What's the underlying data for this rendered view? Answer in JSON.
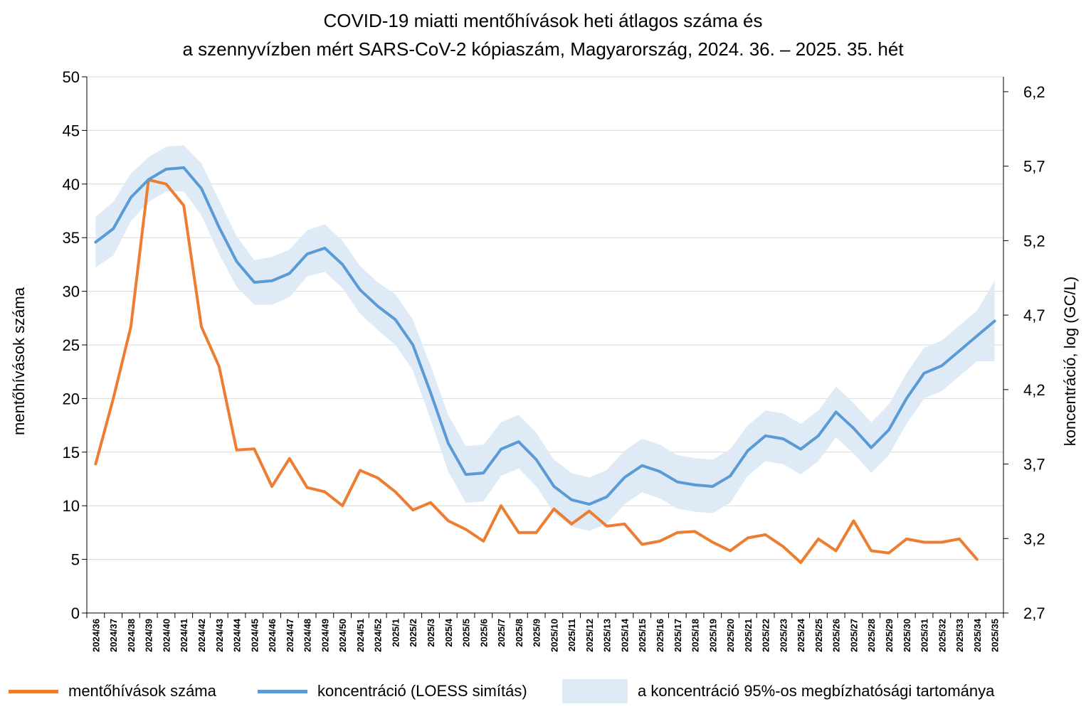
{
  "title_line1": "COVID-19 miatti mentőhívások heti átlagos száma és",
  "title_line2": "a szennyvízben mért SARS-CoV-2 kópiaszám, Magyarország, 2024. 36. – 2025. 35. hét",
  "chart_data": {
    "type": "line",
    "title": "COVID-19 miatti mentőhívások heti átlagos száma és a szennyvízben mért SARS-CoV-2 kópiaszám, Magyarország, 2024. 36. – 2025. 35. hét",
    "ylabel_left": "mentőhívások száma",
    "ylabel_right": "koncentráció, log (GC/L)",
    "ylim_left": [
      0,
      50
    ],
    "ylim_right": [
      2.7,
      6.3
    ],
    "yticks_left": [
      "0",
      "5",
      "10",
      "15",
      "20",
      "25",
      "30",
      "35",
      "40",
      "45",
      "50"
    ],
    "yticks_right": [
      "2,7",
      "3,2",
      "3,7",
      "4,2",
      "4,7",
      "5,2",
      "5,7",
      "6,2"
    ],
    "grid": true,
    "categories": [
      "2024/36",
      "2024/37",
      "2024/38",
      "2024/39",
      "2024/40",
      "2024/41",
      "2024/42",
      "2024/43",
      "2024/44",
      "2024/45",
      "2024/46",
      "2024/47",
      "2024/48",
      "2024/49",
      "2024/50",
      "2024/51",
      "2024/52",
      "2025/1",
      "2025/2",
      "2025/3",
      "2025/4",
      "2025/5",
      "2025/6",
      "2025/7",
      "2025/8",
      "2025/9",
      "2025/10",
      "2025/11",
      "2025/12",
      "2025/13",
      "2025/14",
      "2025/15",
      "2025/16",
      "2025/17",
      "2025/18",
      "2025/19",
      "2025/20",
      "2025/21",
      "2025/22",
      "2025/23",
      "2025/24",
      "2025/25",
      "2025/26",
      "2025/27",
      "2025/28",
      "2025/29",
      "2025/30",
      "2025/31",
      "2025/32",
      "2025/33",
      "2025/34",
      "2025/35"
    ],
    "series": [
      {
        "name": "mentőhívások száma",
        "axis": "left",
        "color": "#ED7D31",
        "values": [
          13.9,
          20.0,
          26.7,
          40.4,
          40.0,
          38.0,
          26.7,
          23.0,
          15.2,
          15.3,
          11.8,
          14.4,
          11.7,
          11.3,
          10.0,
          13.3,
          12.6,
          11.3,
          9.6,
          10.3,
          8.6,
          7.8,
          6.7,
          10.0,
          7.5,
          7.5,
          9.7,
          8.3,
          9.5,
          8.1,
          8.3,
          6.4,
          6.7,
          7.5,
          7.6,
          6.6,
          5.8,
          7.0,
          7.3,
          6.2,
          4.7,
          6.9,
          5.8,
          8.6,
          5.8,
          5.6,
          6.9,
          6.6,
          6.6,
          6.9,
          5.0,
          null
        ]
      },
      {
        "name": "koncentráció (LOESS simítás)",
        "axis": "right",
        "color": "#5B9BD5",
        "values": [
          5.19,
          5.28,
          5.49,
          5.61,
          5.68,
          5.69,
          5.55,
          5.29,
          5.06,
          4.92,
          4.93,
          4.98,
          5.11,
          5.15,
          5.04,
          4.87,
          4.76,
          4.67,
          4.5,
          4.18,
          3.84,
          3.63,
          3.64,
          3.8,
          3.85,
          3.73,
          3.55,
          3.46,
          3.43,
          3.48,
          3.61,
          3.69,
          3.65,
          3.58,
          3.56,
          3.55,
          3.62,
          3.79,
          3.89,
          3.87,
          3.8,
          3.89,
          4.05,
          3.94,
          3.81,
          3.93,
          4.14,
          4.31,
          4.36,
          4.46,
          4.56,
          4.66
        ]
      },
      {
        "name": "a koncentráció 95%-os megbízhatósági tartománya",
        "axis": "right",
        "type": "band",
        "color": "#DEEBF7",
        "lower": [
          5.02,
          5.1,
          5.33,
          5.46,
          5.53,
          5.53,
          5.37,
          5.11,
          4.89,
          4.77,
          4.77,
          4.82,
          4.96,
          4.99,
          4.88,
          4.71,
          4.6,
          4.5,
          4.33,
          4.0,
          3.65,
          3.44,
          3.45,
          3.62,
          3.67,
          3.55,
          3.37,
          3.28,
          3.25,
          3.3,
          3.43,
          3.51,
          3.47,
          3.4,
          3.38,
          3.37,
          3.44,
          3.62,
          3.72,
          3.7,
          3.63,
          3.72,
          3.88,
          3.77,
          3.64,
          3.76,
          3.97,
          4.14,
          4.19,
          4.29,
          4.39,
          4.39
        ],
        "upper": [
          5.36,
          5.46,
          5.65,
          5.76,
          5.83,
          5.84,
          5.72,
          5.47,
          5.23,
          5.07,
          5.09,
          5.14,
          5.27,
          5.31,
          5.2,
          5.03,
          4.92,
          4.84,
          4.67,
          4.36,
          4.03,
          3.82,
          3.83,
          3.98,
          4.03,
          3.91,
          3.73,
          3.64,
          3.61,
          3.66,
          3.79,
          3.87,
          3.83,
          3.76,
          3.74,
          3.73,
          3.8,
          3.96,
          4.06,
          4.04,
          3.97,
          4.06,
          4.22,
          4.11,
          3.98,
          4.1,
          4.31,
          4.48,
          4.53,
          4.63,
          4.73,
          4.93
        ]
      }
    ],
    "legend": [
      "mentőhívások száma",
      "koncentráció (LOESS simítás)",
      "a koncentráció 95%-os megbízhatósági tartománya"
    ],
    "legend_position": "bottom"
  }
}
